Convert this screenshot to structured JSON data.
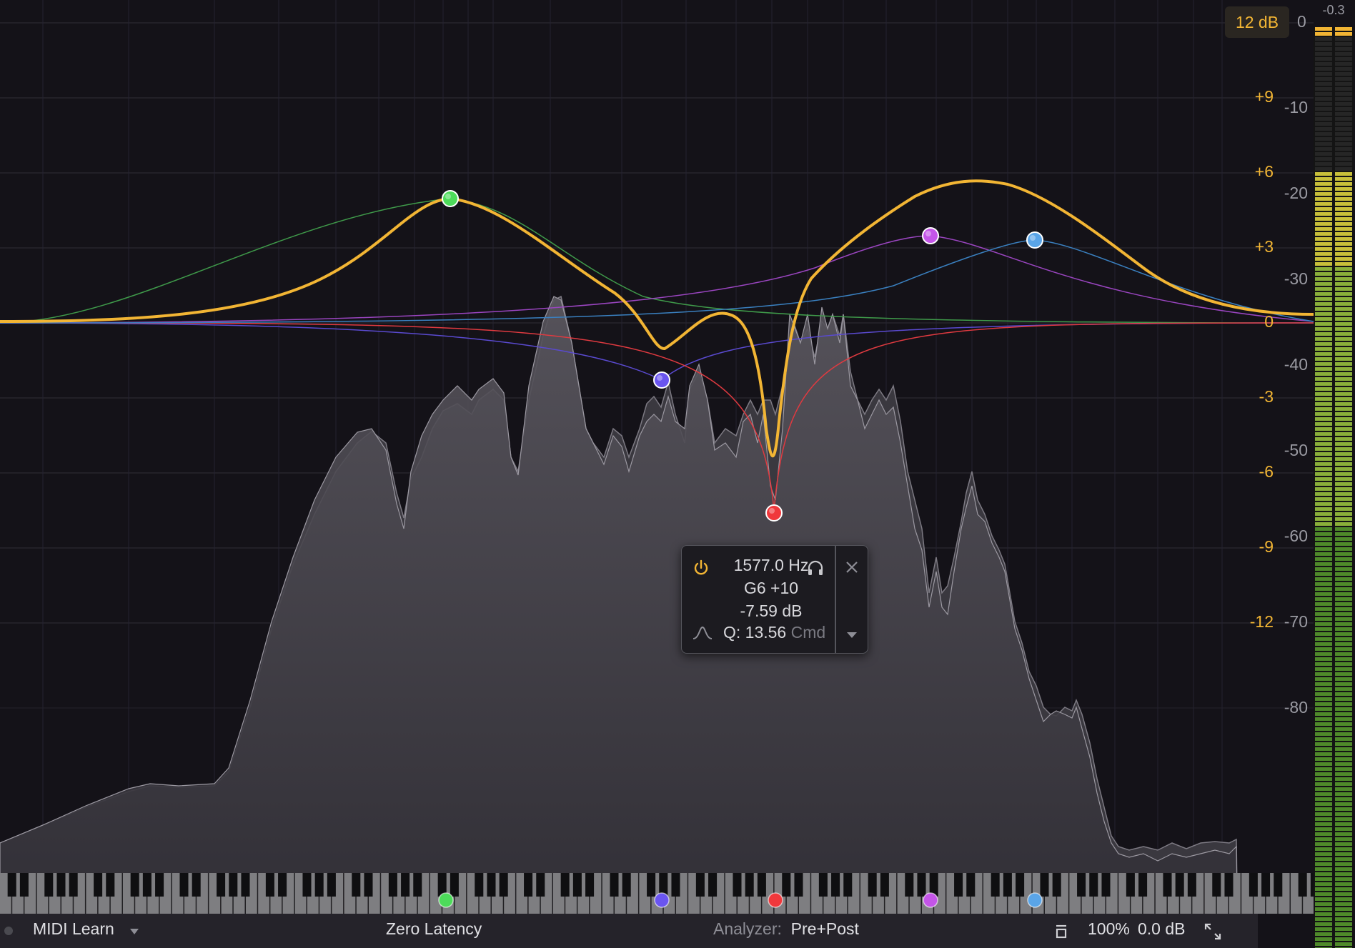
{
  "range_button": "12 dB",
  "peak_hold": "-0.3",
  "gain_scale": [
    "+9",
    "+6",
    "+3",
    "0",
    "-3",
    "-6",
    "-9",
    "-12"
  ],
  "analyzer_scale": [
    "0",
    "-10",
    "-20",
    "-30",
    "-40",
    "-50",
    "-60",
    "-70",
    "-80"
  ],
  "bands": [
    {
      "color": "#4ddb5a",
      "name": "band-1"
    },
    {
      "color": "#6a55f0",
      "name": "band-2"
    },
    {
      "color": "#f0383c",
      "name": "band-3"
    },
    {
      "color": "#c455e8",
      "name": "band-4"
    },
    {
      "color": "#5aa5e8",
      "name": "band-5"
    }
  ],
  "popup": {
    "frequency": "1577.0 Hz",
    "note": "G6 +10",
    "gain": "-7.59 dB",
    "q": "Q: 13.56",
    "q_modifier": "Cmd"
  },
  "bottom_bar": {
    "midi_learn": "MIDI Learn",
    "latency": "Zero Latency",
    "analyzer_label": "Analyzer:",
    "analyzer_value": "Pre+Post",
    "zoom": "100%",
    "output_gain": "0.0 dB"
  },
  "colors": {
    "curve": "#f2b534",
    "accent": "#f2b534",
    "background": "#141218"
  },
  "icons": [
    "power-icon",
    "headphones-icon",
    "close-icon",
    "filter-shape-icon",
    "dropdown-arrow-icon",
    "collapse-icon",
    "fullscreen-icon"
  ]
}
